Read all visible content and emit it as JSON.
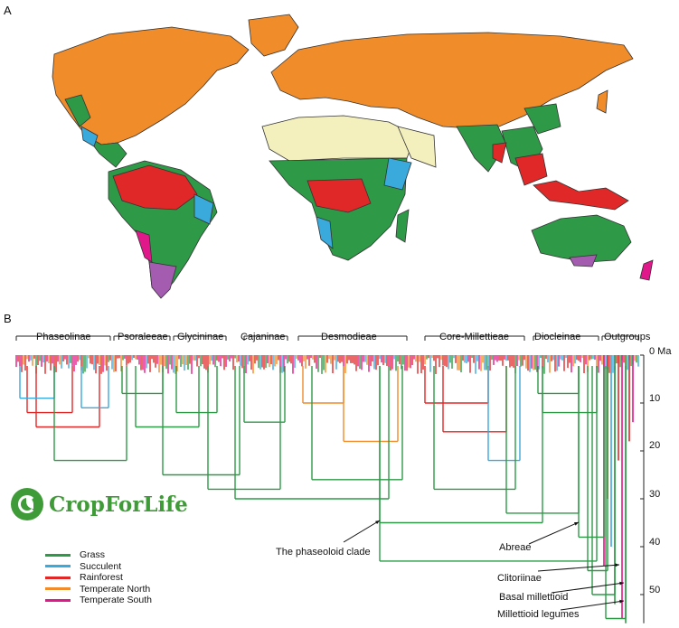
{
  "panel_a": {
    "label": "A"
  },
  "panel_b": {
    "label": "B"
  },
  "colors": {
    "grass": "#2e9a48",
    "succulent": "#3aa9dc",
    "rainforest": "#e02828",
    "temperate_north": "#f08c2a",
    "temperate_south": "#e0188a",
    "desert": "#f3f0bd",
    "south_temperate_map": "#a35cb0"
  },
  "clades": [
    {
      "label": "Phaseolinae"
    },
    {
      "label": "Psoraleeae"
    },
    {
      "label": "Glycininae"
    },
    {
      "label": "Cajaninae"
    },
    {
      "label": "Desmodieae"
    },
    {
      "label": "Core-Millettieae"
    },
    {
      "label": "Diocleinae"
    },
    {
      "label": "Outgroups"
    }
  ],
  "axis": {
    "ticks": [
      "0 Ma",
      "10",
      "20",
      "30",
      "40",
      "50"
    ]
  },
  "annotations": {
    "phaseoloid": "The phaseoloid clade",
    "abreae": "Abreae",
    "clitoriinae": "Clitoriinae",
    "basal": "Basal millettioid",
    "millettioid": "Millettioid legumes"
  },
  "legend": [
    {
      "label": "Grass",
      "color": "#2e9a48"
    },
    {
      "label": "Succulent",
      "color": "#3aa9dc"
    },
    {
      "label": "Rainforest",
      "color": "#e02828"
    },
    {
      "label": "Temperate North",
      "color": "#f08c2a"
    },
    {
      "label": "Temperate South",
      "color": "#e0188a"
    }
  ],
  "logo": {
    "text": "CropForLife"
  }
}
